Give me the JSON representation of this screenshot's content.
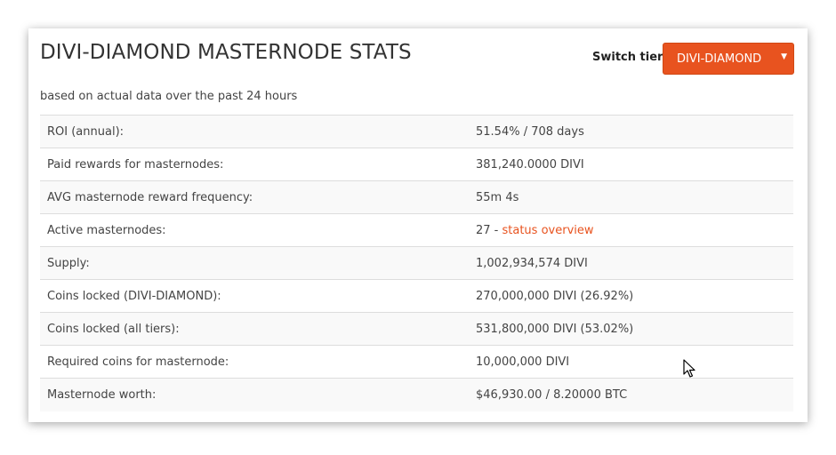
{
  "title": "DIVI-DIAMOND MASTERNODE STATS",
  "switch_tier": {
    "label": "Switch tier:",
    "selected": "DIVI-DIAMOND",
    "caret": "▼"
  },
  "subtitle": "based on actual data over the past 24 hours",
  "stats": [
    {
      "label": "ROI (annual):",
      "value": "51.54% / 708 days"
    },
    {
      "label": "Paid rewards for masternodes:",
      "value": "381,240.0000 DIVI"
    },
    {
      "label": "AVG masternode reward frequency:",
      "value": "55m 4s"
    },
    {
      "label": "Active masternodes:",
      "value": "27 - ",
      "link": "status overview"
    },
    {
      "label": "Supply:",
      "value": "1,002,934,574 DIVI"
    },
    {
      "label": "Coins locked (DIVI-DIAMOND):",
      "value": "270,000,000 DIVI (26.92%)"
    },
    {
      "label": "Coins locked (all tiers):",
      "value": "531,800,000 DIVI (53.02%)"
    },
    {
      "label": "Required coins for masternode:",
      "value": "10,000,000 DIVI"
    },
    {
      "label": "Masternode worth:",
      "value": "$46,930.00 / 8.20000 BTC"
    }
  ],
  "colors": {
    "accent": "#e8531f",
    "text": "#444444",
    "row_stripe": "#f9f9f9",
    "border": "#dddddd"
  },
  "icons": {
    "dropdown": "caret-down-icon",
    "pointer": "mouse-cursor-icon"
  }
}
